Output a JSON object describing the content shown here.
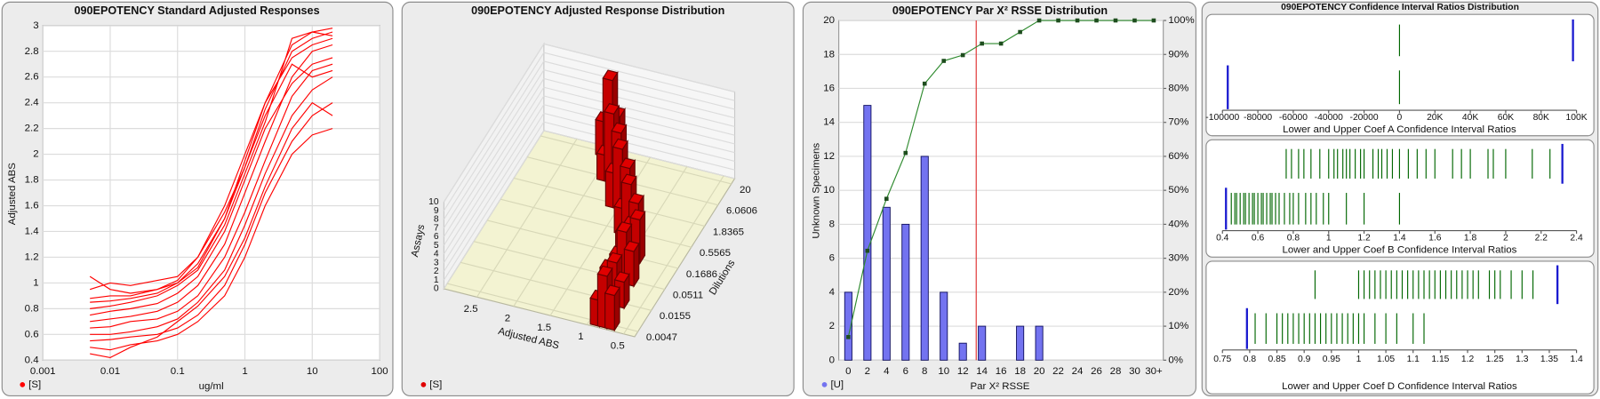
{
  "chart_data": [
    {
      "type": "line",
      "title": "090EPOTENCY Standard Adjusted Responses",
      "x_label": "ug/ml",
      "y_label": "Adjusted ABS",
      "legend": "[S]",
      "log_x": true,
      "grid": true,
      "color": "#ff0000",
      "x": [
        0.005,
        0.01,
        0.02,
        0.05,
        0.1,
        0.2,
        0.5,
        1,
        2,
        5,
        10,
        20
      ],
      "xlim": [
        0.001,
        100
      ],
      "xticks": [
        0.001,
        0.01,
        0.1,
        1,
        10,
        100
      ],
      "ylim": [
        0.4,
        3
      ],
      "yticks": [
        0.4,
        0.6,
        0.8,
        1,
        1.2,
        1.4,
        1.6,
        1.8,
        2,
        2.2,
        2.4,
        2.6,
        2.8,
        3
      ],
      "series": [
        {
          "values": [
            0.85,
            0.86,
            0.88,
            0.92,
            1.0,
            1.15,
            1.5,
            1.9,
            2.35,
            2.8,
            2.9,
            2.95
          ]
        },
        {
          "values": [
            0.7,
            0.72,
            0.74,
            0.78,
            0.85,
            0.98,
            1.3,
            1.7,
            2.1,
            2.6,
            2.8,
            2.85
          ]
        },
        {
          "values": [
            0.6,
            0.6,
            0.62,
            0.66,
            0.72,
            0.85,
            1.1,
            1.45,
            1.85,
            2.3,
            2.5,
            2.6
          ]
        },
        {
          "values": [
            0.95,
            1.0,
            0.98,
            1.02,
            1.05,
            1.2,
            1.6,
            2.0,
            2.4,
            2.75,
            2.85,
            2.9
          ]
        },
        {
          "values": [
            0.55,
            0.56,
            0.58,
            0.6,
            0.65,
            0.75,
            0.98,
            1.3,
            1.7,
            2.1,
            2.3,
            2.4
          ]
        },
        {
          "values": [
            0.75,
            0.78,
            0.8,
            0.84,
            0.92,
            1.05,
            1.4,
            1.8,
            2.2,
            2.55,
            2.7,
            2.75
          ]
        },
        {
          "values": [
            0.65,
            0.66,
            0.7,
            0.72,
            0.78,
            0.9,
            1.2,
            1.55,
            1.95,
            2.45,
            2.65,
            2.7
          ]
        },
        {
          "values": [
            0.8,
            0.82,
            0.85,
            0.9,
            0.98,
            1.1,
            1.45,
            1.85,
            2.25,
            2.9,
            2.95,
            2.92
          ]
        },
        {
          "values": [
            0.5,
            0.48,
            0.52,
            0.55,
            0.6,
            0.7,
            0.9,
            1.2,
            1.6,
            2.0,
            2.15,
            2.2
          ]
        },
        {
          "values": [
            1.05,
            0.95,
            0.92,
            0.95,
            1.0,
            1.12,
            1.5,
            1.95,
            2.4,
            2.85,
            2.95,
            2.98
          ]
        },
        {
          "values": [
            0.45,
            0.42,
            0.5,
            0.58,
            0.7,
            0.82,
            1.05,
            1.35,
            1.75,
            2.2,
            2.4,
            2.3
          ]
        },
        {
          "values": [
            0.88,
            0.9,
            0.9,
            0.95,
            1.02,
            1.2,
            1.55,
            1.9,
            2.3,
            2.7,
            2.6,
            2.65
          ]
        }
      ]
    },
    {
      "type": "bar3d",
      "title": "090EPOTENCY Adjusted Response Distribution",
      "x_label": "Adjusted ABS",
      "y_label": "Dilutions",
      "z_label": "Assays",
      "legend": "[S]",
      "xlim": [
        0.35,
        2.95
      ],
      "xticks": [
        0.5,
        1,
        1.5,
        2,
        2.5
      ],
      "log_y": true,
      "ylim": [
        0.0035,
        27
      ],
      "yticks": [
        0.0047,
        0.0155,
        0.0511,
        0.1686,
        0.5565,
        1.8365,
        6.0606,
        20
      ],
      "zlim": [
        0,
        10
      ],
      "zticks": [
        0,
        1,
        2,
        3,
        4,
        5,
        6,
        7,
        8,
        9,
        10
      ],
      "series": [
        {
          "color": "#e00000",
          "x": [
            0.7,
            0.8,
            0.9,
            0.75,
            0.85,
            0.95,
            0.8,
            0.9,
            1.0,
            0.9,
            1.0,
            1.1,
            1.1,
            1.2,
            1.3,
            1.4,
            1.5,
            1.6,
            1.7,
            1.8,
            1.9,
            1.9,
            2.0,
            2.1
          ],
          "y": [
            0.0047,
            0.0047,
            0.0047,
            0.0155,
            0.0155,
            0.0155,
            0.0511,
            0.0511,
            0.0511,
            0.1686,
            0.1686,
            0.1686,
            0.5565,
            0.5565,
            0.5565,
            1.8365,
            1.8365,
            1.8365,
            6.0606,
            6.0606,
            6.0606,
            20,
            20,
            20
          ],
          "values": [
            4,
            6,
            3,
            3,
            5,
            4,
            4,
            6,
            3,
            5,
            4,
            3,
            4,
            6,
            3,
            5,
            7,
            4,
            6,
            8,
            3,
            5,
            9,
            4
          ]
        }
      ]
    },
    {
      "type": "bar_line",
      "title": "090EPOTENCY Par X² RSSE Distribution",
      "x_label": "Par X² RSSE",
      "y_label": "Unknown Specimens",
      "legend": "[U]",
      "grid": true,
      "threshold": 13.4,
      "threshold_color": "#e03030",
      "categories": [
        "0",
        "2",
        "4",
        "6",
        "8",
        "10",
        "12",
        "14",
        "16",
        "18",
        "20",
        "22",
        "24",
        "26",
        "28",
        "30",
        "30+"
      ],
      "ylim": [
        0,
        20
      ],
      "yticks": [
        0,
        2,
        4,
        6,
        8,
        10,
        12,
        14,
        16,
        18,
        20
      ],
      "y2lim": [
        0,
        100
      ],
      "y2ticks": [
        {
          "value": 0,
          "label": "0%"
        },
        {
          "value": 10,
          "label": "10%"
        },
        {
          "value": 20,
          "label": "20%"
        },
        {
          "value": 30,
          "label": "30%"
        },
        {
          "value": 40,
          "label": "40%"
        },
        {
          "value": 50,
          "label": "50%"
        },
        {
          "value": 60,
          "label": "60%"
        },
        {
          "value": 70,
          "label": "70%"
        },
        {
          "value": 80,
          "label": "80%"
        },
        {
          "value": 90,
          "label": "90%"
        },
        {
          "value": 100,
          "label": "100%"
        }
      ],
      "series": [
        {
          "color": "#7373f0",
          "values": [
            4,
            15,
            9,
            8,
            12,
            4,
            1,
            2,
            0,
            2,
            2,
            0,
            0,
            0,
            0,
            0,
            0
          ]
        },
        {
          "color": "#2e8a2e",
          "axis": "y2",
          "values": [
            6.8,
            32.2,
            47.5,
            61,
            81.4,
            88.1,
            89.8,
            93.2,
            93.2,
            96.6,
            100,
            100,
            100,
            100,
            100,
            100,
            100
          ]
        }
      ]
    },
    {
      "type": "strip",
      "title": "090EPOTENCY Confidence Interval Ratios Distribution",
      "panels": [
        {
          "x_label": "Lower and Upper Coef A Confidence Interval Ratios",
          "xlim": [
            -100000,
            100000
          ],
          "xticks": [
            -100000,
            -80000,
            -60000,
            -40000,
            -20000,
            0,
            {
              "value": 20000,
              "label": "20K"
            },
            {
              "value": 40000,
              "label": "40K"
            },
            {
              "value": 60000,
              "label": "60K"
            },
            {
              "value": 80000,
              "label": "80K"
            },
            {
              "value": 100000,
              "label": "100K"
            }
          ],
          "series": [
            {
              "row": 0,
              "color": "#006600",
              "values": [
                0
              ]
            },
            {
              "row": 0,
              "color": "#1a1ad0",
              "values": [
                98000
              ]
            },
            {
              "row": 1,
              "color": "#006600",
              "values": [
                0
              ]
            },
            {
              "row": 1,
              "color": "#1a1ad0",
              "values": [
                -97000
              ]
            }
          ]
        },
        {
          "x_label": "Lower and Upper Coef B Confidence Interval Ratios",
          "xlim": [
            0.4,
            2.4
          ],
          "xticks": [
            0.4,
            0.6,
            0.8,
            1,
            1.2,
            1.4,
            1.6,
            1.8,
            2,
            2.2,
            2.4
          ],
          "series": [
            {
              "row": 0,
              "color": "#006600",
              "values": [
                0.76,
                0.79,
                0.83,
                0.86,
                0.9,
                0.95,
                1.0,
                1.03,
                1.05,
                1.08,
                1.1,
                1.12,
                1.15,
                1.18,
                1.2,
                1.25,
                1.28,
                1.3,
                1.33,
                1.36,
                1.4,
                1.45,
                1.5,
                1.55,
                1.6,
                1.7,
                1.75,
                1.8,
                1.9,
                1.93,
                2.0,
                2.15,
                2.25
              ]
            },
            {
              "row": 0,
              "color": "#1a1ad0",
              "values": [
                2.32
              ]
            },
            {
              "row": 1,
              "color": "#006600",
              "values": [
                0.45,
                0.47,
                0.48,
                0.5,
                0.52,
                0.53,
                0.55,
                0.57,
                0.58,
                0.6,
                0.62,
                0.63,
                0.65,
                0.67,
                0.68,
                0.7,
                0.72,
                0.75,
                0.78,
                0.8,
                0.83,
                0.87,
                0.9,
                0.93,
                0.97,
                1.0,
                1.1,
                1.2,
                1.4
              ]
            },
            {
              "row": 1,
              "color": "#1a1ad0",
              "values": [
                0.42
              ]
            }
          ]
        },
        {
          "x_label": "Lower and Upper Coef D Confidence Interval Ratios",
          "xlim": [
            0.75,
            1.4
          ],
          "xticks": [
            0.75,
            0.8,
            0.85,
            0.9,
            0.95,
            1,
            1.05,
            1.1,
            1.15,
            1.2,
            1.25,
            1.3,
            1.35,
            1.4
          ],
          "series": [
            {
              "row": 0,
              "color": "#006600",
              "values": [
                0.92,
                1.0,
                1.01,
                1.02,
                1.03,
                1.04,
                1.05,
                1.06,
                1.07,
                1.08,
                1.09,
                1.1,
                1.11,
                1.12,
                1.13,
                1.14,
                1.15,
                1.16,
                1.17,
                1.18,
                1.19,
                1.2,
                1.21,
                1.22,
                1.24,
                1.25,
                1.26,
                1.28,
                1.3,
                1.32
              ]
            },
            {
              "row": 0,
              "color": "#1a1ad0",
              "values": [
                1.365
              ]
            },
            {
              "row": 1,
              "color": "#006600",
              "values": [
                0.81,
                0.83,
                0.85,
                0.86,
                0.87,
                0.88,
                0.89,
                0.9,
                0.91,
                0.92,
                0.93,
                0.94,
                0.95,
                0.96,
                0.97,
                0.98,
                0.99,
                1.0,
                1.01,
                1.03,
                1.05,
                1.07,
                1.1,
                1.12
              ]
            },
            {
              "row": 1,
              "color": "#1a1ad0",
              "values": [
                0.795
              ]
            }
          ]
        }
      ]
    }
  ]
}
